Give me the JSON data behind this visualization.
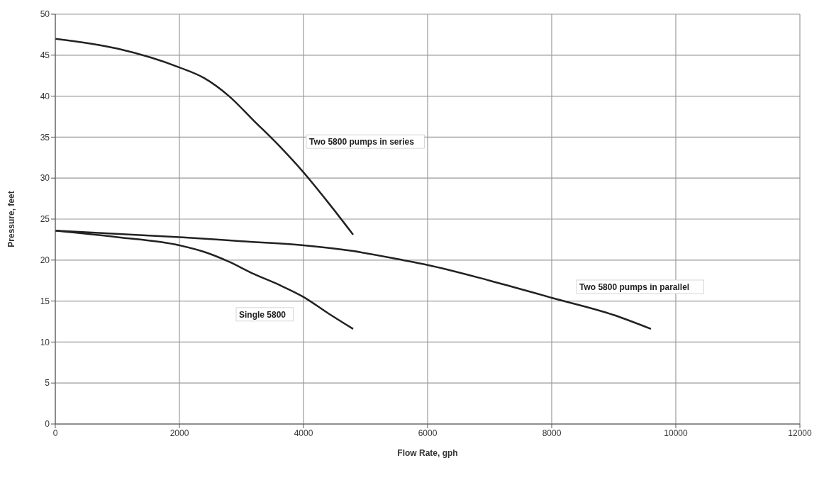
{
  "chart_data": {
    "type": "line",
    "xlabel": "Flow Rate, gph",
    "ylabel": "Pressure, feet",
    "xlim": [
      0,
      12000
    ],
    "xticks": [
      0,
      2000,
      4000,
      6000,
      8000,
      10000,
      12000
    ],
    "ylim": [
      0,
      50
    ],
    "yticks": [
      0,
      5,
      10,
      15,
      20,
      25,
      30,
      35,
      40,
      45,
      50
    ],
    "grid": true,
    "legend": false,
    "marker": "none",
    "line_style": "solid",
    "series": [
      {
        "name": "Two 5800 pumps in series",
        "color": "#222222",
        "x": [
          0,
          1000,
          2000,
          2400,
          2800,
          3200,
          3600,
          4000,
          4400,
          4800
        ],
        "values": [
          47,
          45.8,
          43.5,
          42.2,
          40,
          37,
          34,
          30.7,
          27,
          23.1
        ]
      },
      {
        "name": "Single 5800",
        "color": "#222222",
        "x": [
          0,
          1000,
          2000,
          2400,
          2800,
          3200,
          3600,
          4000,
          4400,
          4800
        ],
        "values": [
          23.6,
          22.8,
          21.8,
          21,
          19.8,
          18.3,
          17,
          15.5,
          13.5,
          11.6
        ]
      },
      {
        "name": "Two 5800 pumps in parallel",
        "color": "#222222",
        "x": [
          0,
          2000,
          3000,
          4000,
          4800,
          5600,
          6000,
          7000,
          8000,
          9000,
          9600
        ],
        "values": [
          23.6,
          22.8,
          22.3,
          21.8,
          21.1,
          20,
          19.4,
          17.5,
          15.4,
          13.3,
          11.6
        ]
      }
    ]
  }
}
